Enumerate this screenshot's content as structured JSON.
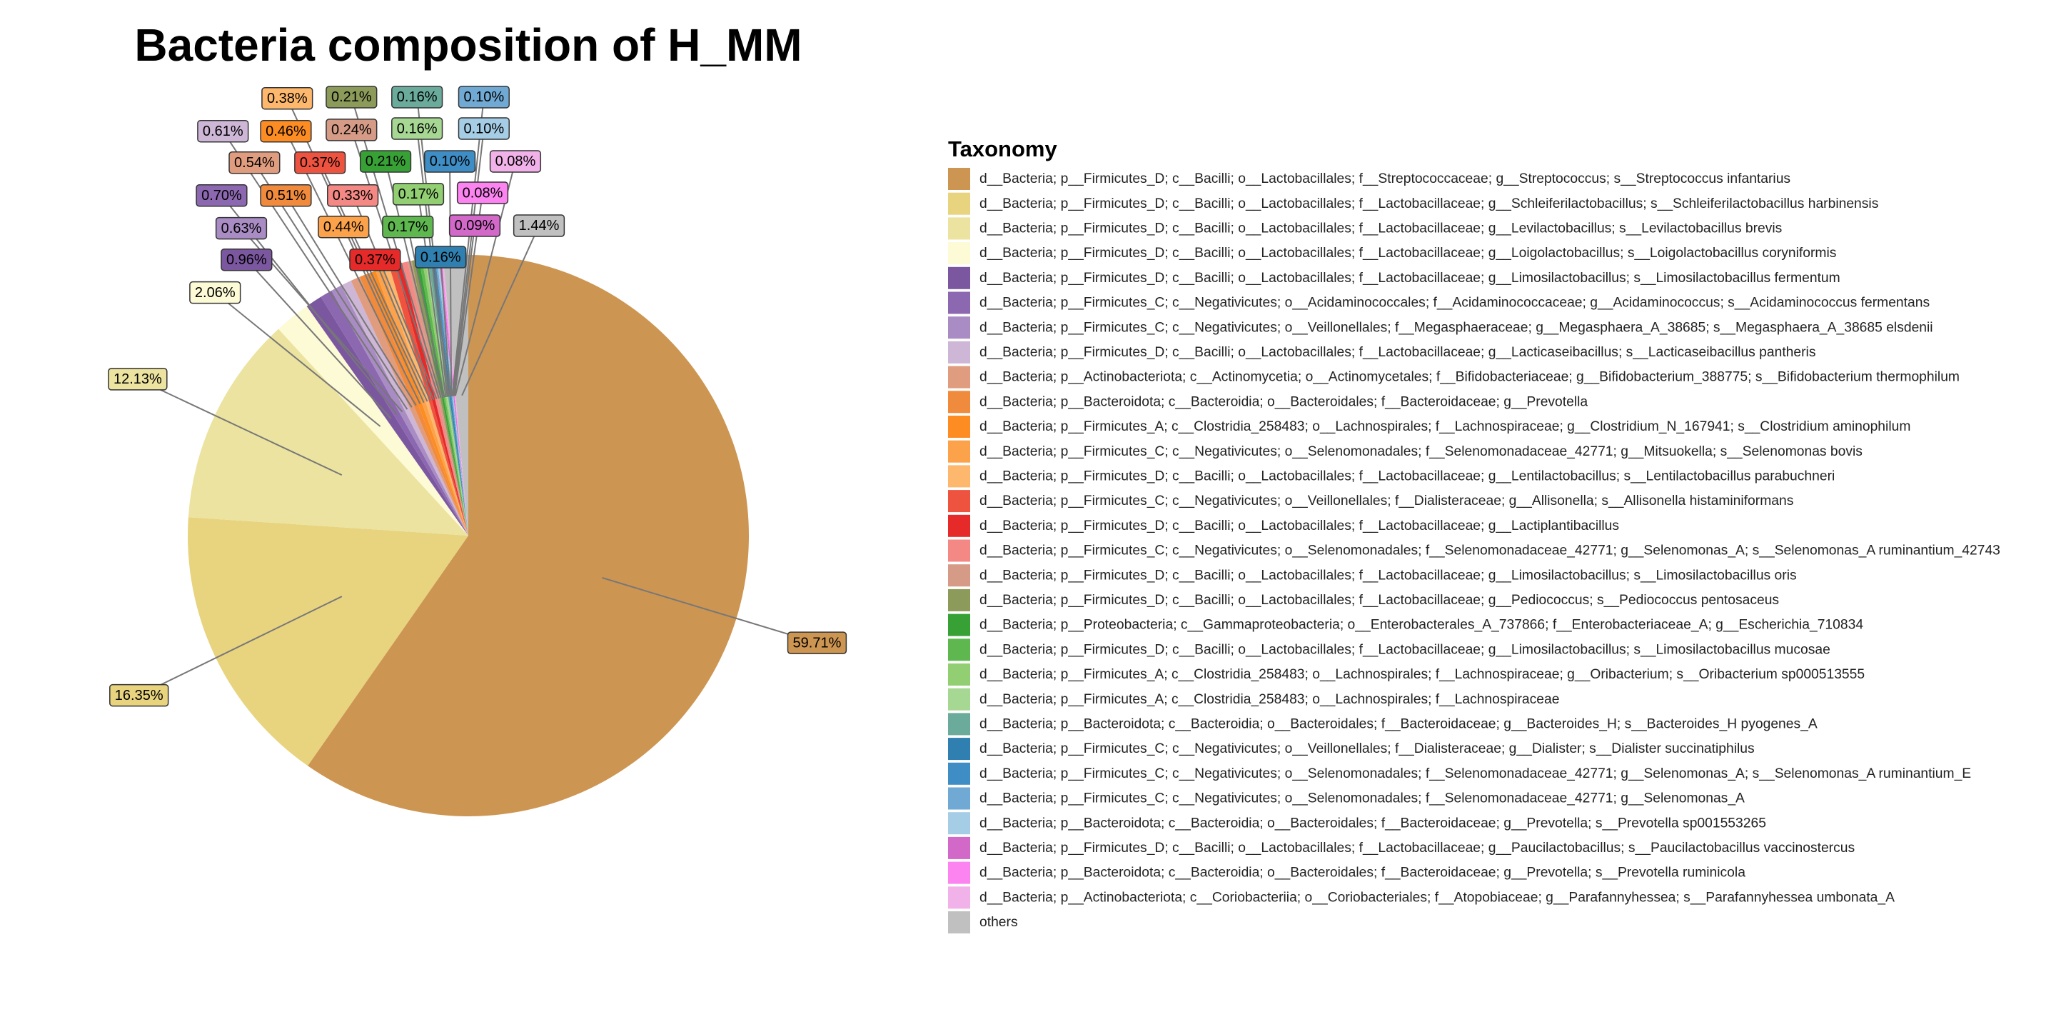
{
  "chart_data": {
    "type": "pie",
    "title": "Bacteria composition of H_MM",
    "legend_title": "Taxonomy",
    "categories": [
      "d__Bacteria; p__Firmicutes_D; c__Bacilli; o__Lactobacillales; f__Streptococcaceae; g__Streptococcus; s__Streptococcus infantarius",
      "d__Bacteria; p__Firmicutes_D; c__Bacilli; o__Lactobacillales; f__Lactobacillaceae; g__Schleiferilactobacillus; s__Schleiferilactobacillus harbinensis",
      "d__Bacteria; p__Firmicutes_D; c__Bacilli; o__Lactobacillales; f__Lactobacillaceae; g__Levilactobacillus; s__Levilactobacillus brevis",
      "d__Bacteria; p__Firmicutes_D; c__Bacilli; o__Lactobacillales; f__Lactobacillaceae; g__Loigolactobacillus; s__Loigolactobacillus coryniformis",
      "d__Bacteria; p__Firmicutes_D; c__Bacilli; o__Lactobacillales; f__Lactobacillaceae; g__Limosilactobacillus; s__Limosilactobacillus fermentum",
      "d__Bacteria; p__Firmicutes_C; c__Negativicutes; o__Acidaminococcales; f__Acidaminococcaceae; g__Acidaminococcus; s__Acidaminococcus fermentans",
      "d__Bacteria; p__Firmicutes_C; c__Negativicutes; o__Veillonellales; f__Megasphaeraceae; g__Megasphaera_A_38685; s__Megasphaera_A_38685 elsdenii",
      "d__Bacteria; p__Firmicutes_D; c__Bacilli; o__Lactobacillales; f__Lactobacillaceae; g__Lacticaseibacillus; s__Lacticaseibacillus pantheris",
      "d__Bacteria; p__Actinobacteriota; c__Actinomycetia; o__Actinomycetales; f__Bifidobacteriaceae; g__Bifidobacterium_388775; s__Bifidobacterium thermophilum",
      "d__Bacteria; p__Bacteroidota; c__Bacteroidia; o__Bacteroidales; f__Bacteroidaceae; g__Prevotella",
      "d__Bacteria; p__Firmicutes_A; c__Clostridia_258483; o__Lachnospirales; f__Lachnospiraceae; g__Clostridium_N_167941; s__Clostridium aminophilum",
      "d__Bacteria; p__Firmicutes_C; c__Negativicutes; o__Selenomonadales; f__Selenomonadaceae_42771; g__Mitsuokella; s__Selenomonas bovis",
      "d__Bacteria; p__Firmicutes_D; c__Bacilli; o__Lactobacillales; f__Lactobacillaceae; g__Lentilactobacillus; s__Lentilactobacillus parabuchneri",
      "d__Bacteria; p__Firmicutes_C; c__Negativicutes; o__Veillonellales; f__Dialisteraceae; g__Allisonella; s__Allisonella histaminiformans",
      "d__Bacteria; p__Firmicutes_D; c__Bacilli; o__Lactobacillales; f__Lactobacillaceae; g__Lactiplantibacillus",
      "d__Bacteria; p__Firmicutes_C; c__Negativicutes; o__Selenomonadales; f__Selenomonadaceae_42771; g__Selenomonas_A; s__Selenomonas_A ruminantium_42743",
      "d__Bacteria; p__Firmicutes_D; c__Bacilli; o__Lactobacillales; f__Lactobacillaceae; g__Limosilactobacillus; s__Limosilactobacillus oris",
      "d__Bacteria; p__Firmicutes_D; c__Bacilli; o__Lactobacillales; f__Lactobacillaceae; g__Pediococcus; s__Pediococcus pentosaceus",
      "d__Bacteria; p__Proteobacteria; c__Gammaproteobacteria; o__Enterobacterales_A_737866; f__Enterobacteriaceae_A; g__Escherichia_710834",
      "d__Bacteria; p__Firmicutes_D; c__Bacilli; o__Lactobacillales; f__Lactobacillaceae; g__Limosilactobacillus; s__Limosilactobacillus mucosae",
      "d__Bacteria; p__Firmicutes_A; c__Clostridia_258483; o__Lachnospirales; f__Lachnospiraceae; g__Oribacterium; s__Oribacterium sp000513555",
      "d__Bacteria; p__Firmicutes_A; c__Clostridia_258483; o__Lachnospirales; f__Lachnospiraceae",
      "d__Bacteria; p__Bacteroidota; c__Bacteroidia; o__Bacteroidales; f__Bacteroidaceae; g__Bacteroides_H; s__Bacteroides_H pyogenes_A",
      "d__Bacteria; p__Firmicutes_C; c__Negativicutes; o__Veillonellales; f__Dialisteraceae; g__Dialister; s__Dialister succinatiphilus",
      "d__Bacteria; p__Firmicutes_C; c__Negativicutes; o__Selenomonadales; f__Selenomonadaceae_42771; g__Selenomonas_A; s__Selenomonas_A ruminantium_E",
      "d__Bacteria; p__Firmicutes_C; c__Negativicutes; o__Selenomonadales; f__Selenomonadaceae_42771; g__Selenomonas_A",
      "d__Bacteria; p__Bacteroidota; c__Bacteroidia; o__Bacteroidales; f__Bacteroidaceae; g__Prevotella; s__Prevotella sp001553265",
      "d__Bacteria; p__Firmicutes_D; c__Bacilli; o__Lactobacillales; f__Lactobacillaceae; g__Paucilactobacillus; s__Paucilactobacillus vaccinostercus",
      "d__Bacteria; p__Bacteroidota; c__Bacteroidia; o__Bacteroidales; f__Bacteroidaceae; g__Prevotella; s__Prevotella ruminicola",
      "d__Bacteria; p__Actinobacteriota; c__Coriobacteriia; o__Coriobacteriales; f__Atopobiaceae; g__Parafannyhessea; s__Parafannyhessea umbonata_A",
      "others"
    ],
    "values": [
      59.71,
      16.35,
      12.13,
      2.06,
      0.96,
      0.7,
      0.63,
      0.61,
      0.54,
      0.51,
      0.46,
      0.44,
      0.38,
      0.37,
      0.37,
      0.33,
      0.24,
      0.21,
      0.21,
      0.17,
      0.17,
      0.16,
      0.16,
      0.16,
      0.1,
      0.1,
      0.1,
      0.09,
      0.08,
      0.08,
      1.44
    ],
    "value_labels": [
      "59.71%",
      "16.35%",
      "12.13%",
      "2.06%",
      "0.96%",
      "0.70%",
      "0.63%",
      "0.61%",
      "0.54%",
      "0.51%",
      "0.46%",
      "0.44%",
      "0.38%",
      "0.37%",
      "0.37%",
      "0.33%",
      "0.24%",
      "0.21%",
      "0.21%",
      "0.17%",
      "0.17%",
      "0.16%",
      "0.16%",
      "0.16%",
      "0.10%",
      "0.10%",
      "0.10%",
      "0.09%",
      "0.08%",
      "0.08%",
      "1.44%"
    ],
    "colors": [
      "#cd9552",
      "#e8d37f",
      "#ebe39f",
      "#fdfad6",
      "#7b57a0",
      "#8c68b0",
      "#a98cc3",
      "#cdb6d6",
      "#e09c7e",
      "#f08a3c",
      "#fd8c22",
      "#fca24b",
      "#fdb86e",
      "#ee5340",
      "#e62a2a",
      "#f38884",
      "#d59b86",
      "#8c9a5a",
      "#38a136",
      "#5eb84f",
      "#91cf72",
      "#a6d894",
      "#6aab9b",
      "#2f80b0",
      "#3e8dc4",
      "#70a9d3",
      "#a5cde6",
      "#d268c8",
      "#fb84f0",
      "#f0b2e8",
      "#c0c0c0"
    ]
  }
}
